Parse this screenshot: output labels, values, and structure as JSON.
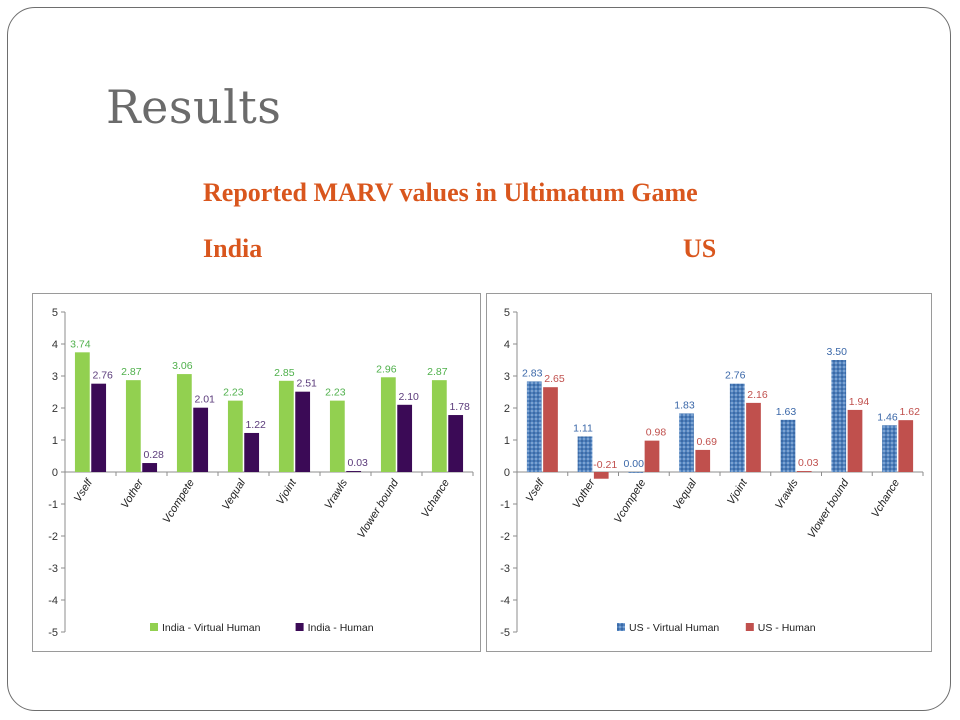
{
  "slide": {
    "title": "Results",
    "subtitle": "Reported MARV values in Ultimatum Game",
    "labels": {
      "india": "India",
      "us": "US"
    }
  },
  "chart_data": [
    {
      "type": "bar",
      "categories": [
        "Vself",
        "Vother",
        "Vcompete",
        "Vequal",
        "Vjoint",
        "Vrawls",
        "Vlower bound",
        "Vchance"
      ],
      "ylim": [
        -5,
        5
      ],
      "yticks": [
        5,
        4,
        3,
        2,
        1,
        0,
        -1,
        -2,
        -3,
        -4,
        -5
      ],
      "series": [
        {
          "name": "India - Virtual Human",
          "values": [
            3.74,
            2.87,
            3.06,
            2.23,
            2.85,
            2.23,
            2.96,
            2.87
          ],
          "color": "#92d050",
          "label_color": "#4fb04b",
          "pattern": "solid"
        },
        {
          "name": "India - Human",
          "values": [
            2.76,
            0.28,
            2.01,
            1.22,
            2.51,
            0.03,
            2.1,
            1.78
          ],
          "color": "#3b0a56",
          "label_color": "#5a3a7a",
          "pattern": "solid"
        }
      ],
      "data_labels": [
        [
          "3.74",
          "2.87",
          "3.06",
          "2.23",
          "2.85",
          "2.23",
          "2.96",
          "2.87"
        ],
        [
          "2.76",
          "0.28",
          "2.01",
          "1.22",
          "2.51",
          "0.03",
          "2.10",
          "1.78"
        ]
      ],
      "legend": "bottom"
    },
    {
      "type": "bar",
      "categories": [
        "Vself",
        "Vother",
        "Vcompete",
        "Vequal",
        "Vjoint",
        "Vrawls",
        "Vlower bound",
        "Vchance"
      ],
      "ylim": [
        -5,
        5
      ],
      "yticks": [
        5,
        4,
        3,
        2,
        1,
        0,
        -1,
        -2,
        -3,
        -4,
        -5
      ],
      "series": [
        {
          "name": "US - Virtual Human",
          "values": [
            2.83,
            1.11,
            0.0,
            1.83,
            2.76,
            1.63,
            3.5,
            1.46
          ],
          "color": "#4f81bd",
          "label_color": "#3a67a8",
          "pattern": "textured"
        },
        {
          "name": "US - Human",
          "values": [
            2.65,
            -0.21,
            0.98,
            0.69,
            2.16,
            0.03,
            1.94,
            1.62
          ],
          "color": "#c0504d",
          "label_color": "#c0504d",
          "pattern": "solid"
        }
      ],
      "data_labels": [
        [
          "2.83",
          "1.11",
          "0.00",
          "1.83",
          "2.76",
          "1.63",
          "3.50",
          "1.46"
        ],
        [
          "2.65",
          "-0.21",
          "0.98",
          "0.69",
          "2.16",
          "0.03",
          "1.94",
          "1.62"
        ]
      ],
      "legend": "bottom"
    }
  ]
}
